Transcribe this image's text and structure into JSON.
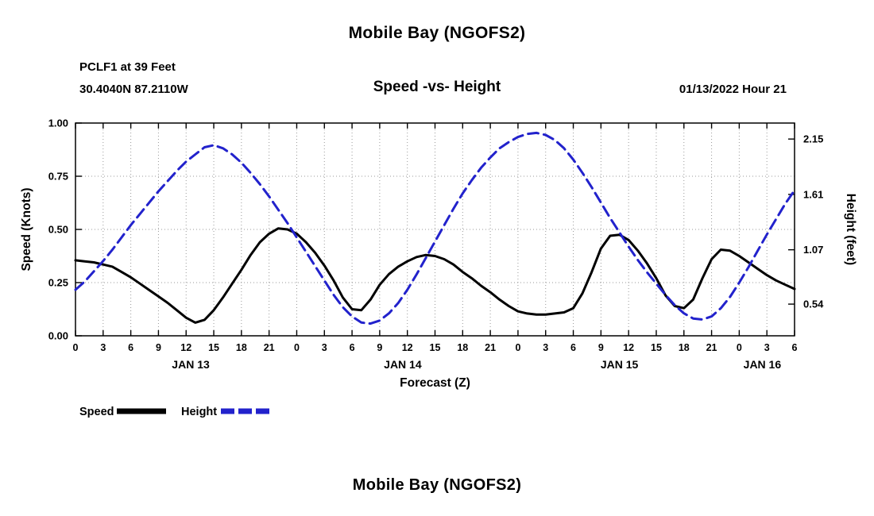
{
  "page": {
    "top_title": "Mobile Bay (NGOFS2)",
    "bottom_title": "Mobile Bay (NGOFS2)"
  },
  "header": {
    "station": "PCLF1 at 39 Feet",
    "coordinates": "30.4040N 87.2110W",
    "plot_subtitle": "Speed -vs- Height",
    "forecast_datetime": "01/13/2022 Hour 21"
  },
  "chart_data": {
    "type": "line",
    "title": "Mobile Bay (NGOFS2)",
    "subtitle": "Speed -vs- Height",
    "xlabel": "Forecast (Z)",
    "ylabel_left": "Speed (Knots)",
    "ylabel_right": "Height (feet)",
    "x_hours_start": 0,
    "x_hours_end": 78,
    "x_tick_interval": 3,
    "x_tick_labels": [
      "0",
      "3",
      "6",
      "9",
      "12",
      "15",
      "18",
      "21",
      "0",
      "3",
      "6",
      "9",
      "12",
      "15",
      "18",
      "21",
      "0",
      "3",
      "6",
      "9",
      "12",
      "15",
      "18",
      "21",
      "0",
      "3",
      "6"
    ],
    "day_labels": [
      {
        "label": "JAN 13",
        "hour": 12.5
      },
      {
        "label": "JAN 14",
        "hour": 35.5
      },
      {
        "label": "JAN 15",
        "hour": 59
      },
      {
        "label": "JAN 16",
        "hour": 74.5
      }
    ],
    "y_left": {
      "min": 0.0,
      "max": 1.0,
      "ticks": [
        0.0,
        0.25,
        0.5,
        0.75,
        1.0
      ],
      "tick_labels": [
        "0.00",
        "0.25",
        "0.50",
        "0.75",
        "1.00"
      ]
    },
    "y_right": {
      "min": 0.231,
      "max": 2.306,
      "ticks": [
        0.54,
        1.07,
        1.61,
        2.15
      ],
      "tick_labels": [
        "0.54",
        "1.07",
        "1.61",
        "2.15"
      ]
    },
    "grid": true,
    "legend_position": "bottom-left",
    "colors": {
      "grid": "#999999",
      "frame": "#000000",
      "text": "#000000",
      "speed_line": "#000000",
      "height_line": "#2222cc"
    },
    "series": [
      {
        "name": "Speed",
        "axis": "left",
        "unit": "knots",
        "color": "#000000",
        "style": "solid",
        "x_step_hours": 1,
        "values": [
          0.355,
          0.35,
          0.345,
          0.335,
          0.325,
          0.3,
          0.275,
          0.245,
          0.215,
          0.185,
          0.155,
          0.12,
          0.085,
          0.062,
          0.075,
          0.12,
          0.18,
          0.245,
          0.31,
          0.38,
          0.44,
          0.48,
          0.505,
          0.5,
          0.48,
          0.44,
          0.39,
          0.33,
          0.26,
          0.18,
          0.125,
          0.12,
          0.17,
          0.24,
          0.29,
          0.325,
          0.35,
          0.37,
          0.38,
          0.375,
          0.36,
          0.335,
          0.3,
          0.27,
          0.235,
          0.205,
          0.17,
          0.14,
          0.115,
          0.105,
          0.1,
          0.1,
          0.105,
          0.11,
          0.13,
          0.2,
          0.3,
          0.41,
          0.47,
          0.475,
          0.45,
          0.4,
          0.34,
          0.27,
          0.19,
          0.14,
          0.13,
          0.17,
          0.27,
          0.36,
          0.405,
          0.4,
          0.375,
          0.345,
          0.315,
          0.285,
          0.26,
          0.24,
          0.22
        ]
      },
      {
        "name": "Height",
        "axis": "right",
        "unit": "feet",
        "color": "#2222cc",
        "style": "dashed",
        "x_step_hours": 1,
        "values": [
          0.68,
          0.76,
          0.86,
          0.96,
          1.07,
          1.19,
          1.31,
          1.42,
          1.53,
          1.64,
          1.74,
          1.84,
          1.93,
          2.0,
          2.07,
          2.09,
          2.06,
          2.0,
          1.92,
          1.82,
          1.71,
          1.59,
          1.46,
          1.33,
          1.19,
          1.05,
          0.91,
          0.77,
          0.63,
          0.51,
          0.42,
          0.36,
          0.35,
          0.38,
          0.45,
          0.55,
          0.68,
          0.83,
          0.99,
          1.15,
          1.31,
          1.47,
          1.62,
          1.75,
          1.87,
          1.97,
          2.06,
          2.12,
          2.17,
          2.2,
          2.21,
          2.19,
          2.14,
          2.06,
          1.95,
          1.82,
          1.68,
          1.53,
          1.38,
          1.24,
          1.1,
          0.97,
          0.85,
          0.74,
          0.63,
          0.53,
          0.45,
          0.4,
          0.39,
          0.42,
          0.5,
          0.61,
          0.75,
          0.9,
          1.06,
          1.22,
          1.37,
          1.52,
          1.65
        ]
      }
    ]
  }
}
